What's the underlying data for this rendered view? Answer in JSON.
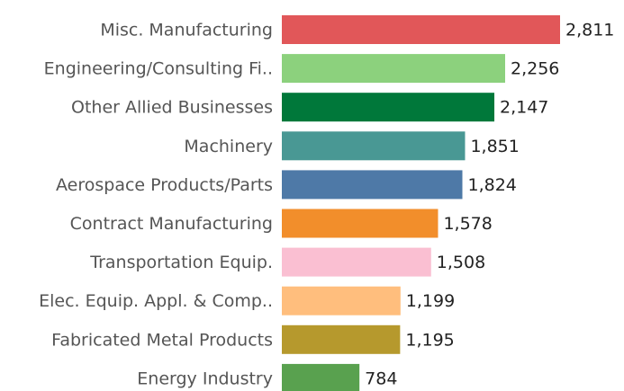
{
  "chart_data": {
    "type": "bar",
    "orientation": "horizontal",
    "categories": [
      "Misc. Manufacturing",
      "Engineering/Consulting Fi..",
      "Other Allied Businesses",
      "Machinery",
      "Aerospace Products/Parts",
      "Contract Manufacturing",
      "Transportation Equip.",
      "Elec. Equip. Appl. & Comp..",
      "Fabricated Metal Products",
      "Energy Industry"
    ],
    "values": [
      2811,
      2256,
      2147,
      1851,
      1824,
      1578,
      1508,
      1199,
      1195,
      784
    ],
    "value_labels": [
      "2,811",
      "2,256",
      "2,147",
      "1,851",
      "1,824",
      "1,578",
      "1,508",
      "1,199",
      "1,195",
      "784"
    ],
    "colors": [
      "#e15759",
      "#8cd17d",
      "#00783a",
      "#499894",
      "#4e79a7",
      "#f28e2b",
      "#fabfd2",
      "#ffbe7d",
      "#b6992d",
      "#59a14f"
    ]
  }
}
